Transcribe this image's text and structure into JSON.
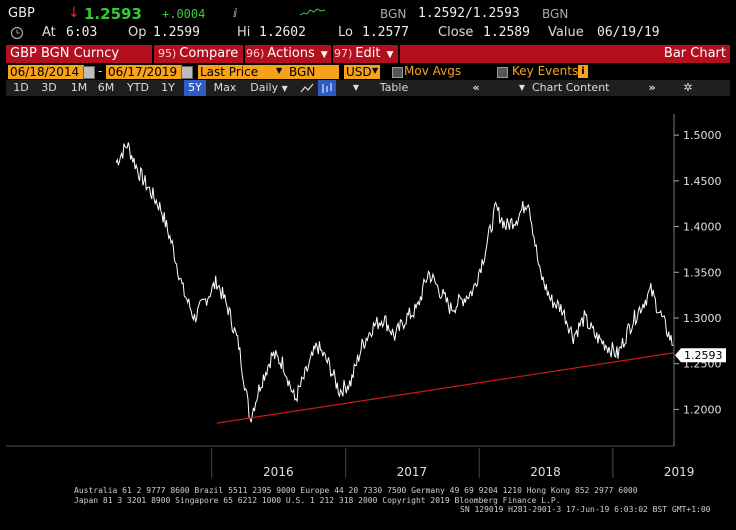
{
  "quote": {
    "ticker": "GBP",
    "price": "1.2593",
    "change": "+.0004",
    "quote_label": "BGN",
    "bid_ask": "1.2592/1.2593",
    "quote_label2": "BGN",
    "time_label": "At",
    "time": "6:03",
    "open_label": "Op",
    "open": "1.2599",
    "high_label": "Hi",
    "high": "1.2602",
    "low_label": "Lo",
    "low": "1.2577",
    "close_label": "Close",
    "close": "1.2589",
    "value_label": "Value",
    "value_date": "06/19/19"
  },
  "menu": {
    "security": "GBP BGN Curncy",
    "compare_num": "95)",
    "compare": "Compare",
    "actions_num": "96)",
    "actions": "Actions",
    "edit_num": "97)",
    "edit": "Edit",
    "chart_type": "Bar Chart"
  },
  "fields": {
    "start_date": "06/18/2014",
    "end_date": "06/17/2019",
    "price_field": "Last Price",
    "source": "BGN",
    "currency": "USD",
    "mov_avgs": "Mov Avgs",
    "key_events": "Key Events",
    "key_events_badge": "i"
  },
  "toolbar": {
    "periods": [
      "1D",
      "3D",
      "1M",
      "6M",
      "YTD",
      "1Y",
      "5Y",
      "Max"
    ],
    "selected_period": "5Y",
    "frequency": "Daily",
    "table": "Table",
    "chart_content": "Chart Content"
  },
  "colors": {
    "accent_red": "#b30f1f",
    "field_orange": "#f6a21a",
    "price_up_green": "#33cc33",
    "trendline_red": "#cc1a1a",
    "last_price_label_bg": "#ffffff"
  },
  "chart_data": {
    "type": "line",
    "title": "",
    "xlabel": "",
    "ylabel": "",
    "x_ticks": [
      "2016",
      "2017",
      "2018",
      "2019"
    ],
    "y_ticks": [
      "1.5000",
      "1.4500",
      "1.4000",
      "1.3500",
      "1.3000",
      "1.2500",
      "1.2000"
    ],
    "ylim": [
      1.16,
      1.51
    ],
    "last_value_label": "1.2593",
    "grid": false,
    "series": [
      {
        "x": [
          "2015-04",
          "2015-05",
          "2015-06",
          "2015-07",
          "2015-08",
          "2015-09",
          "2015-10",
          "2015-11",
          "2015-12",
          "2016-01",
          "2016-02",
          "2016-03",
          "2016-04",
          "2016-05",
          "2016-06",
          "2016-07",
          "2016-08",
          "2016-09",
          "2016-10",
          "2016-11",
          "2016-12",
          "2017-01",
          "2017-02",
          "2017-03",
          "2017-04",
          "2017-05",
          "2017-06",
          "2017-07",
          "2017-08",
          "2017-09",
          "2017-10",
          "2017-11",
          "2017-12",
          "2018-01",
          "2018-02",
          "2018-03",
          "2018-04",
          "2018-05",
          "2018-06",
          "2018-07",
          "2018-08",
          "2018-09",
          "2018-10",
          "2018-11",
          "2018-12",
          "2019-01",
          "2019-02",
          "2019-03",
          "2019-04",
          "2019-05",
          "2019-06"
        ],
        "y": [
          1.47,
          1.49,
          1.46,
          1.44,
          1.42,
          1.38,
          1.33,
          1.3,
          1.32,
          1.34,
          1.31,
          1.27,
          1.19,
          1.23,
          1.26,
          1.25,
          1.21,
          1.24,
          1.27,
          1.25,
          1.22,
          1.23,
          1.27,
          1.29,
          1.3,
          1.28,
          1.3,
          1.31,
          1.35,
          1.33,
          1.31,
          1.32,
          1.33,
          1.37,
          1.42,
          1.4,
          1.41,
          1.43,
          1.35,
          1.32,
          1.31,
          1.28,
          1.3,
          1.28,
          1.27,
          1.26,
          1.29,
          1.31,
          1.33,
          1.3,
          1.27
        ]
      },
      {
        "x": [
          "2016-01",
          "2019-06"
        ],
        "y": [
          1.185,
          1.262
        ]
      }
    ]
  }
}
